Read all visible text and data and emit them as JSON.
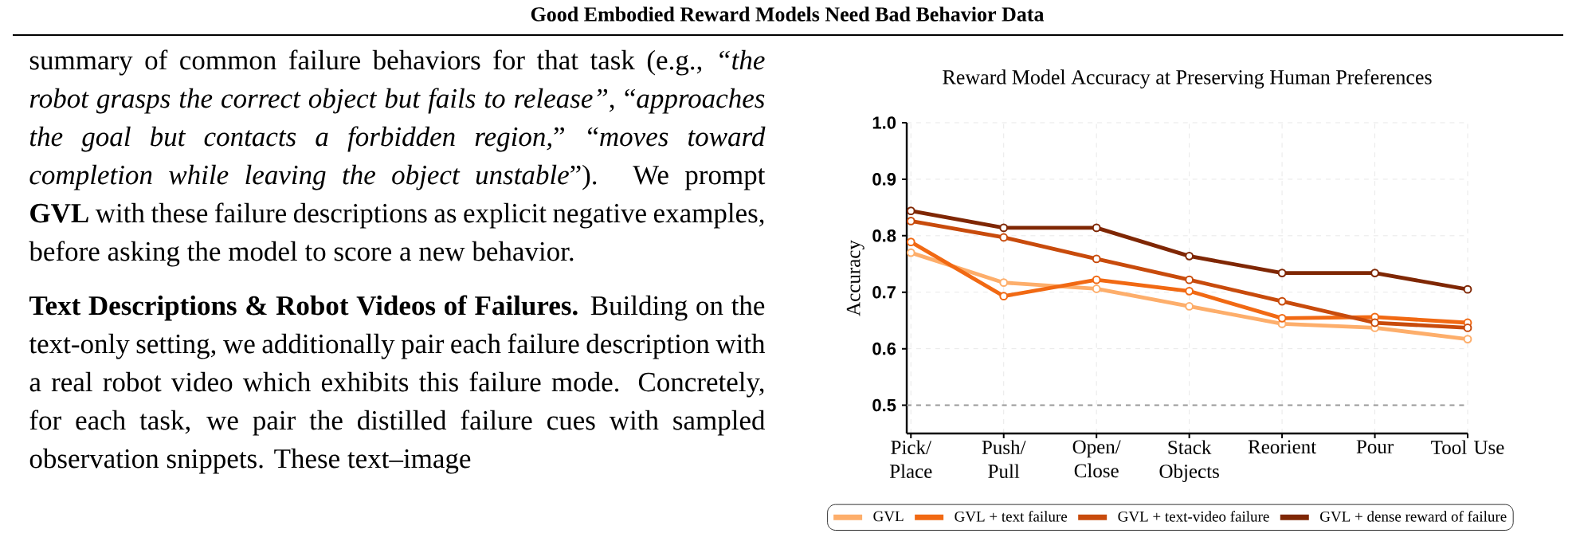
{
  "chart_data": {
    "type": "line",
    "title": "Reward Model Accuracy at Preserving Human Preferences",
    "ylabel": "Accuracy",
    "annotations": [
      "Good Embodied Reward Models Need Bad Behavior Data",
      "summary of common failure behaviors for that task (e.g., *“the robot grasps the correct object but fails to release”*, “*approaches the goal but contacts a forbidden region,*” “*moves toward completion while leaving the object unstable*”). We prompt **GVL** with these failure descriptions as explicit negative examples, before asking the model to score a new behavior.",
      "**Text Descriptions & Robot Videos of Failures.** Building on the text-only setting, we additionally pair each failure description with a real robot video which exhibits this failure mode. Concretely, for each task, we pair the distilled failure cues with sampled observation snippets. These text–image"
    ],
    "categories": [
      "Pick/ Place",
      "Push/ Pull",
      "Open/ Close",
      "Stack Objects",
      "Reorient",
      "Pour",
      "Tool Use"
    ],
    "series": [
      {
        "name": "GVL",
        "color": "#fdae6b",
        "values": [
          0.77,
          0.717,
          0.706,
          0.675,
          0.644,
          0.637,
          0.617
        ]
      },
      {
        "name": "GVL + text failure",
        "color": "#f16913",
        "values": [
          0.789,
          0.693,
          0.722,
          0.702,
          0.654,
          0.656,
          0.646
        ]
      },
      {
        "name": "GVL + text-video failure",
        "color": "#c84b0c",
        "values": [
          0.826,
          0.797,
          0.759,
          0.722,
          0.684,
          0.646,
          0.637
        ]
      },
      {
        "name": "GVL + dense reward of failure",
        "color": "#7f2704",
        "values": [
          0.844,
          0.814,
          0.814,
          0.764,
          0.734,
          0.734,
          0.705
        ]
      }
    ],
    "ylim": [
      0.45,
      1.0
    ],
    "yticks": [
      {
        "value": 0.5,
        "label": "0.5"
      },
      {
        "value": 0.6,
        "label": "0.6"
      },
      {
        "value": 0.7,
        "label": "0.7"
      },
      {
        "value": 0.8,
        "label": "0.8"
      },
      {
        "value": 0.9,
        "label": "0.9"
      },
      {
        "value": 1.0,
        "label": "1.0"
      }
    ],
    "ref_lines": [
      {
        "axis": "y",
        "value": 0.5,
        "color": "#999999",
        "line_style": "dashed"
      }
    ],
    "grid": true,
    "legend": "bottom",
    "marker": "circle",
    "line_style": "solid"
  }
}
